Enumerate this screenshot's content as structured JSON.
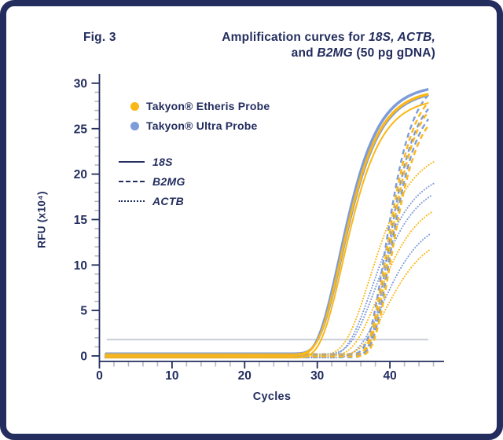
{
  "figure": {
    "label": "Fig. 3"
  },
  "title": {
    "line1_pre": "Amplification curves for ",
    "line1_italic": "18S, ACTB,",
    "line2_pre": "and ",
    "line2_italic": "B2MG",
    "line2_post": " (50 pg gDNA)"
  },
  "colors": {
    "navy": "#232d5e",
    "yellow": "#fbb715",
    "blue": "#7e9cd9",
    "minor_tick": "#b4b8c6",
    "threshold": "#cdd0d8",
    "background": "#ffffff"
  },
  "legend_probes": [
    {
      "name": "Takyon® Etheris Probe",
      "color_key": "yellow"
    },
    {
      "name": "Takyon® Ultra Probe",
      "color_key": "blue"
    }
  ],
  "legend_targets": [
    {
      "name": "18S",
      "style": "solid"
    },
    {
      "name": "B2MG",
      "style": "dashed"
    },
    {
      "name": "ACTB",
      "style": "dotted"
    }
  ],
  "chart_data": {
    "type": "line",
    "title": "Amplification curves for 18S, ACTB, and B2MG (50 pg gDNA)",
    "xlabel": "Cycles",
    "ylabel": "RFU (x10⁴)",
    "xlim": [
      0,
      47.4
    ],
    "ylim": [
      -0.6,
      31
    ],
    "x_major_ticks": [
      0,
      10,
      20,
      30,
      40
    ],
    "x_minor_step": 2,
    "y_major_ticks": [
      0,
      5,
      10,
      15,
      20,
      25,
      30
    ],
    "y_minor_step": 1,
    "grid": "off",
    "legend_position": "upper-left-inside",
    "threshold": {
      "value": 1.8,
      "start_cycle": 1,
      "end_cycle": 45.3
    },
    "model": "rfu = base + plateau * exp(-exp(-rate * (cycle - midpoint)))",
    "cycle_start": 0.8,
    "series": [
      {
        "target": "ACTB",
        "probe": "Takyon Etheris",
        "style": "dotted",
        "color_key": "yellow",
        "plateau": 22.8,
        "midpoint": 37.2,
        "rate": 0.3,
        "base": 0.1,
        "end": 46.5,
        "ct": 35.3
      },
      {
        "target": "ACTB",
        "probe": "Takyon Ultra",
        "style": "dotted",
        "color_key": "blue",
        "plateau": 20.6,
        "midpoint": 37.5,
        "rate": 0.3,
        "base": -0.1,
        "end": 46.2,
        "ct": 35.8
      },
      {
        "target": "ACTB",
        "probe": "Takyon Ultra",
        "style": "dotted",
        "color_key": "blue",
        "plateau": 19.2,
        "midpoint": 37.9,
        "rate": 0.3,
        "base": 0.2,
        "end": 46.0,
        "ct": 36.3
      },
      {
        "target": "ACTB",
        "probe": "Takyon Etheris",
        "style": "dotted",
        "color_key": "yellow",
        "plateau": 17.6,
        "midpoint": 38.3,
        "rate": 0.3,
        "base": 0.0,
        "end": 45.8,
        "ct": 36.9
      },
      {
        "target": "ACTB",
        "probe": "Takyon Ultra",
        "style": "dotted",
        "color_key": "blue",
        "plateau": 15.6,
        "midpoint": 38.9,
        "rate": 0.3,
        "base": -0.2,
        "end": 45.7,
        "ct": 37.7
      },
      {
        "target": "ACTB",
        "probe": "Takyon Etheris",
        "style": "dotted",
        "color_key": "yellow",
        "plateau": 13.6,
        "midpoint": 39.4,
        "rate": 0.3,
        "base": 0.1,
        "end": 45.6,
        "ct": 38.4
      },
      {
        "target": "B2MG",
        "probe": "Takyon Ultra",
        "style": "dashed",
        "color_key": "blue",
        "plateau": 30.5,
        "midpoint": 39.3,
        "rate": 0.45,
        "base": 0.2,
        "end": 45.5,
        "ct": 37.0
      },
      {
        "target": "B2MG",
        "probe": "Takyon Etheris",
        "style": "dashed",
        "color_key": "yellow",
        "plateau": 30.0,
        "midpoint": 39.45,
        "rate": 0.45,
        "base": 0.0,
        "end": 45.5,
        "ct": 37.2
      },
      {
        "target": "B2MG",
        "probe": "Takyon Ultra",
        "style": "dashed",
        "color_key": "blue",
        "plateau": 29.5,
        "midpoint": 39.6,
        "rate": 0.45,
        "base": -0.15,
        "end": 45.4,
        "ct": 37.3
      },
      {
        "target": "B2MG",
        "probe": "Takyon Etheris",
        "style": "dashed",
        "color_key": "yellow",
        "plateau": 29.0,
        "midpoint": 39.75,
        "rate": 0.45,
        "base": 0.15,
        "end": 45.4,
        "ct": 37.5
      },
      {
        "target": "B2MG",
        "probe": "Takyon Ultra",
        "style": "dashed",
        "color_key": "blue",
        "plateau": 28.4,
        "midpoint": 39.9,
        "rate": 0.45,
        "base": 0.05,
        "end": 45.3,
        "ct": 37.6
      },
      {
        "target": "B2MG",
        "probe": "Takyon Etheris",
        "style": "dashed",
        "color_key": "yellow",
        "plateau": 27.9,
        "midpoint": 40.05,
        "rate": 0.45,
        "base": -0.05,
        "end": 45.3,
        "ct": 37.8
      },
      {
        "target": "18S",
        "probe": "Takyon Ultra",
        "style": "solid",
        "color_key": "blue",
        "plateau": 30.0,
        "midpoint": 33.0,
        "rate": 0.33,
        "base": -0.1,
        "end": 45.4,
        "ct": 29.9
      },
      {
        "target": "18S",
        "probe": "Takyon Ultra",
        "style": "solid",
        "color_key": "blue",
        "plateau": 29.7,
        "midpoint": 33.15,
        "rate": 0.33,
        "base": 0.1,
        "end": 45.4,
        "ct": 30.1
      },
      {
        "target": "18S",
        "probe": "Takyon Ultra",
        "style": "solid",
        "color_key": "blue",
        "plateau": 28.9,
        "midpoint": 33.4,
        "rate": 0.33,
        "base": 0.3,
        "end": 45.3,
        "ct": 30.4
      },
      {
        "target": "18S",
        "probe": "Takyon Etheris",
        "style": "solid",
        "color_key": "yellow",
        "plateau": 29.4,
        "midpoint": 33.2,
        "rate": 0.33,
        "base": 0.0,
        "end": 45.4,
        "ct": 30.1
      },
      {
        "target": "18S",
        "probe": "Takyon Etheris",
        "style": "solid",
        "color_key": "yellow",
        "plateau": 29.1,
        "midpoint": 33.3,
        "rate": 0.33,
        "base": 0.2,
        "end": 45.3,
        "ct": 30.2
      },
      {
        "target": "18S",
        "probe": "Takyon Etheris",
        "style": "solid",
        "color_key": "yellow",
        "plateau": 28.6,
        "midpoint": 33.5,
        "rate": 0.33,
        "base": -0.2,
        "end": 45.3,
        "ct": 30.4
      }
    ]
  }
}
